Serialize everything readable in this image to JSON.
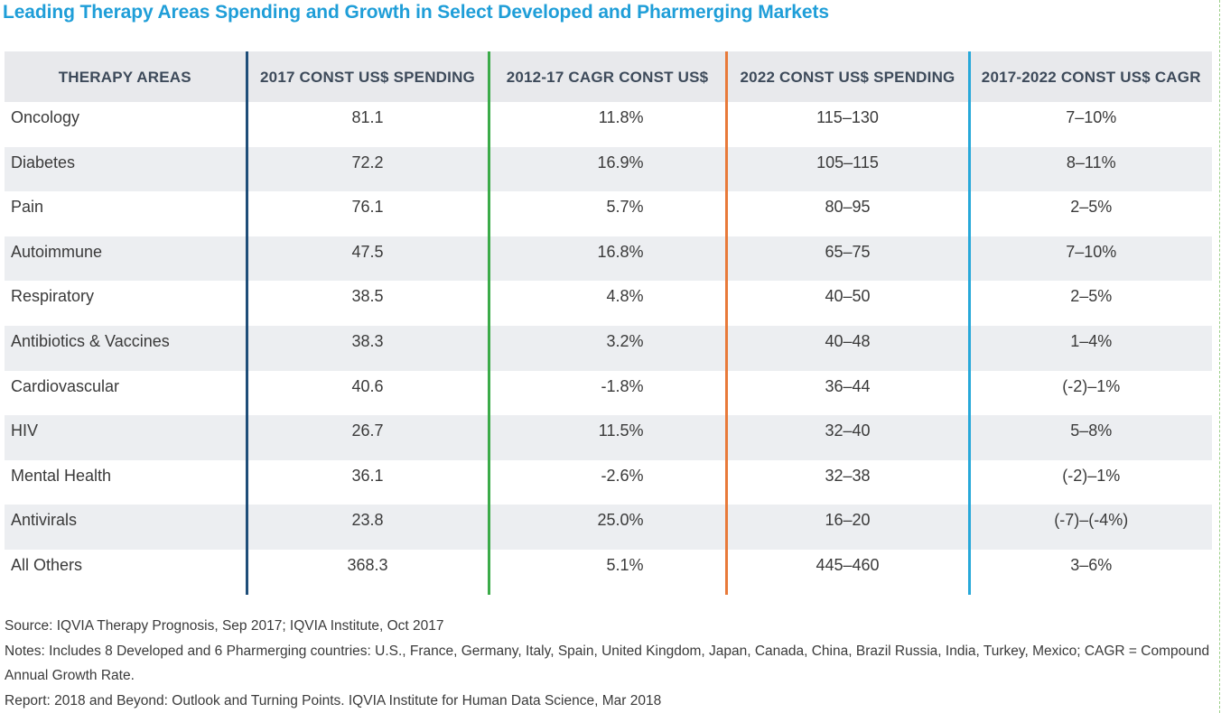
{
  "chart_data": {
    "type": "table",
    "title": "Leading Therapy Areas Spending and Growth in Select Developed and Pharmerging Markets",
    "columns": [
      "THERAPY AREAS",
      "2017 CONST US$ SPENDING",
      "2012-17 CAGR CONST US$",
      "2022 CONST US$ SPENDING",
      "2017-2022 CONST US$ CAGR"
    ],
    "rows": [
      [
        "Oncology",
        "81.1",
        "11.8%",
        "115–130",
        "7–10%"
      ],
      [
        "Diabetes",
        "72.2",
        "16.9%",
        "105–115",
        "8–11%"
      ],
      [
        "Pain",
        "76.1",
        "5.7%",
        "80–95",
        "2–5%"
      ],
      [
        "Autoimmune",
        "47.5",
        "16.8%",
        "65–75",
        "7–10%"
      ],
      [
        "Respiratory",
        "38.5",
        "4.8%",
        "40–50",
        "2–5%"
      ],
      [
        "Antibiotics & Vaccines",
        "38.3",
        "3.2%",
        "40–48",
        "1–4%"
      ],
      [
        "Cardiovascular",
        "40.6",
        "-1.8%",
        "36–44",
        "(-2)–1%"
      ],
      [
        "HIV",
        "26.7",
        "11.5%",
        "32–40",
        "5–8%"
      ],
      [
        "Mental Health",
        "36.1",
        "-2.6%",
        "32–38",
        "(-2)–1%"
      ],
      [
        "Antivirals",
        "23.8",
        "25.0%",
        "16–20",
        "(-7)–(-4%)"
      ],
      [
        "All Others",
        "368.3",
        "5.1%",
        "445–460",
        "3–6%"
      ]
    ],
    "column_colors": [
      "#1f4e79",
      "#3bab49",
      "#e87a3a",
      "#27a8d9"
    ],
    "source": "Source: IQVIA Therapy Prognosis, Sep 2017; IQVIA Institute, Oct 2017",
    "notes": "Notes: Includes 8 Developed and 6 Pharmerging countries: U.S., France, Germany, Italy, Spain, United Kingdom, Japan, Canada, China, Brazil Russia, India, Turkey, Mexico; CAGR = Compound Annual Growth Rate.",
    "report": "Report: 2018 and Beyond: Outlook and Turning Points. IQVIA Institute for Human Data Science, Mar 2018"
  },
  "colors": {
    "title": "#1f9ed8",
    "header_bg": "#e8e9ec",
    "stripe_bg": "#eceef1"
  }
}
